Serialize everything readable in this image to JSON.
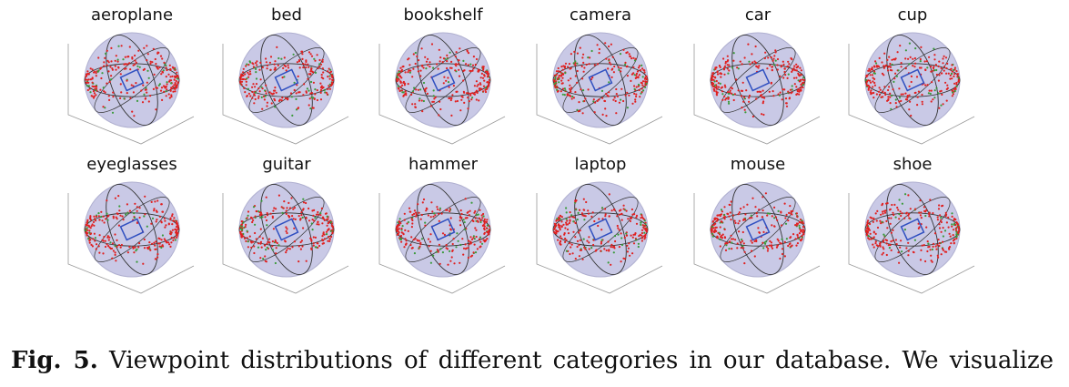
{
  "figure": {
    "panels": [
      "aeroplane",
      "bed",
      "bookshelf",
      "camera",
      "car",
      "cup",
      "eyeglasses",
      "guitar",
      "hammer",
      "laptop",
      "mouse",
      "shoe"
    ]
  },
  "caption": {
    "label": "Fig. 5.",
    "text": "Viewpoint distributions of different categories in our database. We visualize"
  }
}
